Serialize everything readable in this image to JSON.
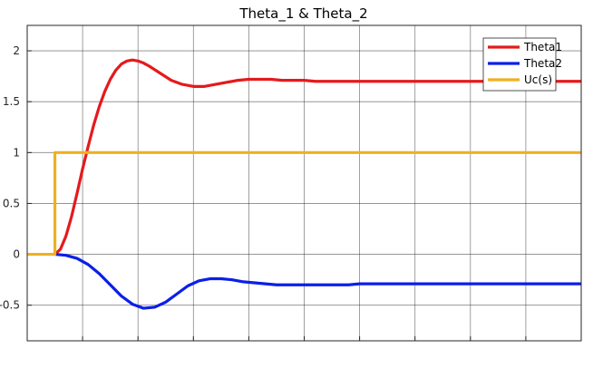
{
  "chart_data": {
    "type": "line",
    "title": "Theta_1 & Theta_2",
    "xlabel": "",
    "ylabel": "",
    "xlim": [
      0,
      10
    ],
    "ylim": [
      -0.85,
      2.25
    ],
    "yticks": [
      -0.5,
      0,
      0.5,
      1,
      1.5,
      2
    ],
    "ytick_labels": [
      "-0.5",
      "0",
      "0.5",
      "1",
      "1.5",
      "2"
    ],
    "xticks": [
      0,
      1,
      2,
      3,
      4,
      5,
      6,
      7,
      8,
      9,
      10
    ],
    "grid": true,
    "legend_position": "top-right",
    "series": [
      {
        "name": "Theta1",
        "color": "#e41a1c",
        "x": [
          0.5,
          0.6,
          0.7,
          0.8,
          0.9,
          1.0,
          1.1,
          1.2,
          1.3,
          1.4,
          1.5,
          1.6,
          1.7,
          1.8,
          1.9,
          2.0,
          2.1,
          2.2,
          2.4,
          2.6,
          2.8,
          3.0,
          3.2,
          3.4,
          3.6,
          3.8,
          4.0,
          4.2,
          4.4,
          4.6,
          4.8,
          5.0,
          5.2,
          5.4,
          5.6,
          5.8,
          6.0,
          6.2,
          6.4,
          6.6,
          6.8,
          7.0,
          7.5,
          8.0,
          8.5,
          9.0,
          9.5,
          10.0
        ],
        "y": [
          0,
          0.05,
          0.18,
          0.37,
          0.6,
          0.84,
          1.06,
          1.27,
          1.45,
          1.6,
          1.72,
          1.81,
          1.87,
          1.9,
          1.91,
          1.9,
          1.88,
          1.85,
          1.78,
          1.71,
          1.67,
          1.65,
          1.65,
          1.67,
          1.69,
          1.71,
          1.72,
          1.72,
          1.72,
          1.71,
          1.71,
          1.71,
          1.7,
          1.7,
          1.7,
          1.7,
          1.7,
          1.7,
          1.7,
          1.7,
          1.7,
          1.7,
          1.7,
          1.7,
          1.7,
          1.7,
          1.7,
          1.7
        ]
      },
      {
        "name": "Theta2",
        "color": "#0a1fe8",
        "x": [
          0.5,
          0.7,
          0.9,
          1.1,
          1.3,
          1.5,
          1.7,
          1.9,
          2.1,
          2.3,
          2.5,
          2.7,
          2.9,
          3.1,
          3.3,
          3.5,
          3.7,
          3.9,
          4.1,
          4.3,
          4.5,
          4.7,
          4.9,
          5.1,
          5.3,
          5.5,
          5.8,
          6.0,
          6.5,
          7.0,
          7.5,
          8.0,
          8.5,
          9.0,
          9.5,
          10.0
        ],
        "y": [
          0,
          -0.01,
          -0.04,
          -0.1,
          -0.19,
          -0.3,
          -0.41,
          -0.49,
          -0.53,
          -0.52,
          -0.47,
          -0.39,
          -0.31,
          -0.26,
          -0.24,
          -0.24,
          -0.25,
          -0.27,
          -0.28,
          -0.29,
          -0.3,
          -0.3,
          -0.3,
          -0.3,
          -0.3,
          -0.3,
          -0.3,
          -0.29,
          -0.29,
          -0.29,
          -0.29,
          -0.29,
          -0.29,
          -0.29,
          -0.29,
          -0.29
        ]
      },
      {
        "name": "Uc(s)",
        "color": "#edb120",
        "x": [
          0,
          0.5,
          0.5,
          10.0
        ],
        "y": [
          0,
          0,
          1,
          1
        ]
      }
    ]
  }
}
